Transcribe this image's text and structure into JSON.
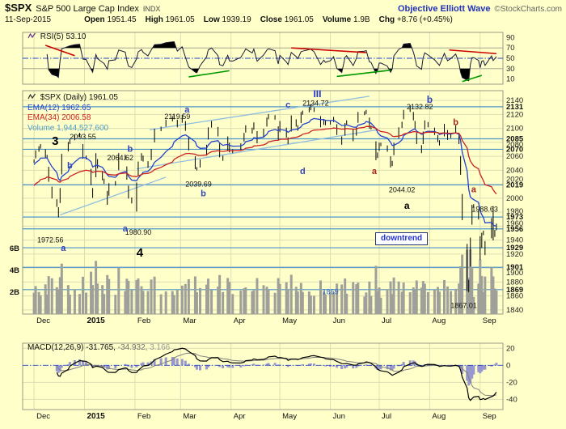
{
  "header": {
    "symbol": "$SPX",
    "name": "S&P 500 Large Cap Index",
    "exchange": "INDX",
    "brand": "Objective Elliott Wave",
    "copyright": "©StockCharts.com",
    "date": "11-Sep-2015",
    "quote": [
      {
        "label": "Open",
        "value": "1951.45"
      },
      {
        "label": "High",
        "value": "1961.05"
      },
      {
        "label": "Low",
        "value": "1939.19"
      },
      {
        "label": "Close",
        "value": "1961.05"
      },
      {
        "label": "Volume",
        "value": "1.9B"
      },
      {
        "label": "Chg",
        "value": "+8.76 (+0.45%)"
      }
    ]
  },
  "legends": {
    "rsi_label": "RSI(5)",
    "rsi_value": "53.10",
    "price_label": "$SPX (Daily)",
    "price_value": "1961.05",
    "ema12_label": "EMA(12)",
    "ema12_value": "1962.65",
    "ema34_label": "EMA(34)",
    "ema34_value": "2006.58",
    "volume_label": "Volume",
    "volume_value": "1,944,527,600",
    "macd_label": "MACD(12,26,9)",
    "macd_v1": "-31.765,",
    "macd_v2": "-34.932,",
    "macd_v3": "3.166",
    "downtrend": "downtrend"
  },
  "colors": {
    "background": "#FFFFC9",
    "grid": "#DDDDB6",
    "panel_border": "#999988",
    "support_line": "#4D94C9",
    "trendline": "#8FBEDF",
    "price_bar": "#000000",
    "ema12": "#2244CC",
    "ema34": "#CC2222",
    "volume_bar": "#A0A09A",
    "rsi_line": "#1A1A3A",
    "rsi_fill": "#000000",
    "macd_line": "#000000",
    "macd_signal": "#808080",
    "macd_hist": "#9898CE",
    "dashed_mid": "#2244CC",
    "brand": "#2233BB"
  },
  "chart_data": {
    "type": "ohlc",
    "title": "$SPX (Daily)",
    "last_close": 1961.05,
    "x_axis": {
      "start": "2014-11-24",
      "end": "2015-09-15",
      "months": [
        [
          "Dec",
          "2014-12-01"
        ],
        [
          "2015",
          "2015-01-01"
        ],
        [
          "Feb",
          "2015-02-01"
        ],
        [
          "Mar",
          "2015-03-01"
        ],
        [
          "Apr",
          "2015-04-01"
        ],
        [
          "May",
          "2015-05-01"
        ],
        [
          "Jun",
          "2015-06-01"
        ],
        [
          "Jul",
          "2015-07-01"
        ],
        [
          "Aug",
          "2015-08-01"
        ],
        [
          "Sep",
          "2015-09-01"
        ]
      ]
    },
    "price_axis": {
      "min": 1834,
      "max": 2154,
      "tick_min": 1840,
      "tick_max": 2140,
      "tick_step": 20
    },
    "support_resistance": [
      2131,
      2085,
      2070,
      2019,
      1973,
      1956,
      1929,
      1901,
      1869
    ],
    "points": [
      [
        "2014-12-01",
        2053
      ],
      [
        "2014-12-02",
        2066
      ],
      [
        "2014-12-04",
        2072
      ],
      [
        "2014-12-05",
        2075
      ],
      [
        "2014-12-08",
        2060
      ],
      [
        "2014-12-09",
        2059
      ],
      [
        "2014-12-10",
        2026
      ],
      [
        "2014-12-12",
        2002
      ],
      [
        "2014-12-15",
        1990
      ],
      [
        "2014-12-16",
        1979
      ],
      [
        "2014-12-17",
        2012
      ],
      [
        "2014-12-18",
        2061
      ],
      [
        "2014-12-22",
        2078
      ],
      [
        "2014-12-23",
        2082
      ],
      [
        "2014-12-26",
        2089
      ],
      [
        "2014-12-29",
        2091
      ],
      [
        "2014-12-31",
        2059
      ],
      [
        "2015-01-02",
        2058
      ],
      [
        "2015-01-05",
        2021
      ],
      [
        "2015-01-06",
        2003
      ],
      [
        "2015-01-08",
        2062
      ],
      [
        "2015-01-09",
        2045
      ],
      [
        "2015-01-12",
        2028
      ],
      [
        "2015-01-13",
        2023
      ],
      [
        "2015-01-15",
        1993
      ],
      [
        "2015-01-16",
        2019
      ],
      [
        "2015-01-20",
        2022
      ],
      [
        "2015-01-22",
        2063
      ],
      [
        "2015-01-26",
        2057
      ],
      [
        "2015-01-27",
        2029
      ],
      [
        "2015-01-28",
        2002
      ],
      [
        "2015-01-30",
        1995
      ],
      [
        "2015-02-02",
        2020
      ],
      [
        "2015-02-03",
        2050
      ],
      [
        "2015-02-05",
        2062
      ],
      [
        "2015-02-06",
        2055
      ],
      [
        "2015-02-09",
        2046
      ],
      [
        "2015-02-11",
        2068
      ],
      [
        "2015-02-13",
        2097
      ],
      [
        "2015-02-17",
        2100
      ],
      [
        "2015-02-20",
        2110
      ],
      [
        "2015-02-24",
        2115
      ],
      [
        "2015-02-25",
        2116
      ],
      [
        "2015-02-27",
        2104
      ],
      [
        "2015-03-02",
        2117
      ],
      [
        "2015-03-04",
        2099
      ],
      [
        "2015-03-06",
        2071
      ],
      [
        "2015-03-10",
        2044
      ],
      [
        "2015-03-11",
        2040
      ],
      [
        "2015-03-13",
        2053
      ],
      [
        "2015-03-17",
        2074
      ],
      [
        "2015-03-18",
        2099
      ],
      [
        "2015-03-20",
        2108
      ],
      [
        "2015-03-24",
        2091
      ],
      [
        "2015-03-25",
        2061
      ],
      [
        "2015-03-27",
        2056
      ],
      [
        "2015-03-30",
        2086
      ],
      [
        "2015-03-31",
        2068
      ],
      [
        "2015-04-02",
        2067
      ],
      [
        "2015-04-07",
        2076
      ],
      [
        "2015-04-09",
        2091
      ],
      [
        "2015-04-10",
        2102
      ],
      [
        "2015-04-14",
        2095
      ],
      [
        "2015-04-15",
        2106
      ],
      [
        "2015-04-17",
        2081
      ],
      [
        "2015-04-21",
        2097
      ],
      [
        "2015-04-23",
        2113
      ],
      [
        "2015-04-24",
        2118
      ],
      [
        "2015-04-28",
        2115
      ],
      [
        "2015-04-30",
        2086
      ],
      [
        "2015-05-01",
        2108
      ],
      [
        "2015-05-05",
        2089
      ],
      [
        "2015-05-06",
        2080
      ],
      [
        "2015-05-08",
        2116
      ],
      [
        "2015-05-11",
        2105
      ],
      [
        "2015-05-12",
        2099
      ],
      [
        "2015-05-14",
        2121
      ],
      [
        "2015-05-15",
        2123
      ],
      [
        "2015-05-19",
        2128
      ],
      [
        "2015-05-20",
        2129
      ],
      [
        "2015-05-22",
        2126
      ],
      [
        "2015-05-26",
        2104
      ],
      [
        "2015-05-28",
        2111
      ],
      [
        "2015-05-29",
        2107
      ],
      [
        "2015-06-01",
        2109
      ],
      [
        "2015-06-03",
        2114
      ],
      [
        "2015-06-05",
        2093
      ],
      [
        "2015-06-08",
        2079
      ],
      [
        "2015-06-10",
        2105
      ],
      [
        "2015-06-11",
        2109
      ],
      [
        "2015-06-15",
        2084
      ],
      [
        "2015-06-17",
        2100
      ],
      [
        "2015-06-18",
        2121
      ],
      [
        "2015-06-22",
        2122
      ],
      [
        "2015-06-23",
        2124
      ],
      [
        "2015-06-25",
        2102
      ],
      [
        "2015-06-26",
        2101
      ],
      [
        "2015-06-29",
        2057
      ],
      [
        "2015-06-30",
        2063
      ],
      [
        "2015-07-01",
        2077
      ],
      [
        "2015-07-02",
        2077
      ],
      [
        "2015-07-06",
        2069
      ],
      [
        "2015-07-08",
        2046
      ],
      [
        "2015-07-09",
        2051
      ],
      [
        "2015-07-10",
        2077
      ],
      [
        "2015-07-13",
        2099
      ],
      [
        "2015-07-15",
        2107
      ],
      [
        "2015-07-16",
        2124
      ],
      [
        "2015-07-20",
        2128
      ],
      [
        "2015-07-22",
        2114
      ],
      [
        "2015-07-23",
        2102
      ],
      [
        "2015-07-24",
        2080
      ],
      [
        "2015-07-27",
        2067
      ],
      [
        "2015-07-28",
        2093
      ],
      [
        "2015-07-29",
        2109
      ],
      [
        "2015-07-31",
        2104
      ],
      [
        "2015-08-04",
        2093
      ],
      [
        "2015-08-06",
        2083
      ],
      [
        "2015-08-07",
        2078
      ],
      [
        "2015-08-10",
        2104
      ],
      [
        "2015-08-12",
        2086
      ],
      [
        "2015-08-14",
        2091
      ],
      [
        "2015-08-17",
        2102
      ],
      [
        "2015-08-19",
        2080
      ],
      [
        "2015-08-20",
        2036
      ],
      [
        "2015-08-21",
        1971
      ],
      [
        "2015-08-24",
        1893
      ],
      [
        "2015-08-25",
        1868
      ],
      [
        "2015-08-26",
        1941
      ],
      [
        "2015-08-27",
        1988
      ],
      [
        "2015-08-28",
        1989
      ],
      [
        "2015-08-31",
        1972
      ],
      [
        "2015-09-01",
        1914
      ],
      [
        "2015-09-02",
        1948
      ],
      [
        "2015-09-03",
        1951
      ],
      [
        "2015-09-04",
        1921
      ],
      [
        "2015-09-08",
        1969
      ],
      [
        "2015-09-09",
        1942
      ],
      [
        "2015-09-10",
        1952
      ],
      [
        "2015-09-11",
        1961.05
      ]
    ],
    "extremes": [
      [
        "2014-12-16",
        "low",
        1972.56
      ],
      [
        "2014-12-29",
        "high",
        2093.55
      ],
      [
        "2015-01-22",
        "high",
        2064.62
      ],
      [
        "2015-02-02",
        "low",
        1980.9
      ],
      [
        "2015-02-25",
        "high",
        2119.59
      ],
      [
        "2015-03-11",
        "low",
        2039.69
      ],
      [
        "2015-05-20",
        "high",
        2134.72
      ],
      [
        "2015-07-08",
        "low",
        2044.02
      ],
      [
        "2015-07-20",
        "high",
        2132.82
      ],
      [
        "2015-08-24",
        "low",
        1867.01
      ],
      [
        "2015-09-09",
        "high",
        1988.63
      ]
    ],
    "emas": [
      {
        "period": 12,
        "value": 1962.65,
        "color": "#2244CC"
      },
      {
        "period": 34,
        "value": 2006.58,
        "color": "#CC2222"
      }
    ],
    "volume": {
      "current": "1,944,527,600",
      "unit": "B",
      "axis_labels": [
        [
          6,
          "6B"
        ],
        [
          4,
          "4B"
        ],
        [
          2,
          "2B"
        ]
      ]
    },
    "trendlines": [
      {
        "from": [
          "2015-02-10",
          2098
        ],
        "to": [
          "2015-06-25",
          2146
        ]
      },
      {
        "from": [
          "2015-02-02",
          2042
        ],
        "to": [
          "2015-06-30",
          2098
        ]
      },
      {
        "from": [
          "2014-12-17",
          1976
        ],
        "to": [
          "2015-02-20",
          2030
        ]
      }
    ],
    "annotations": [
      {
        "text": "3",
        "date": "2014-12-14",
        "price": 2080,
        "color": "#000000",
        "size": 15,
        "bold": true
      },
      {
        "text": "b",
        "date": "2014-12-23",
        "price": 2046,
        "color": "#3344BB",
        "size": 11,
        "bold": true
      },
      {
        "text": "a",
        "date": "2014-12-19",
        "price": 1928,
        "color": "#3344BB",
        "size": 11,
        "bold": true
      },
      {
        "text": "1972.56",
        "date": "2014-12-11",
        "price": 1940,
        "color": "#111111",
        "size": 9,
        "bold": false
      },
      {
        "text": "2093.55",
        "date": "2014-12-31",
        "price": 2088,
        "color": "#111111",
        "size": 9,
        "bold": false
      },
      {
        "text": "4",
        "date": "2015-02-04",
        "price": 1920,
        "color": "#000000",
        "size": 15,
        "bold": true
      },
      {
        "text": "1980.90",
        "date": "2015-02-03",
        "price": 1951,
        "color": "#111111",
        "size": 9,
        "bold": false
      },
      {
        "text": "a",
        "date": "2015-01-26",
        "price": 1956,
        "color": "#3344BB",
        "size": 11,
        "bold": true
      },
      {
        "text": "b",
        "date": "2015-01-29",
        "price": 2070,
        "color": "#3344BB",
        "size": 11,
        "bold": true
      },
      {
        "text": "2064.62",
        "date": "2015-01-23",
        "price": 2058,
        "color": "#111111",
        "size": 9,
        "bold": false
      },
      {
        "text": "a",
        "date": "2015-03-05",
        "price": 2126,
        "color": "#3344BB",
        "size": 11,
        "bold": true
      },
      {
        "text": "2119.59",
        "date": "2015-02-27",
        "price": 2117,
        "color": "#111111",
        "size": 9,
        "bold": false
      },
      {
        "text": "b",
        "date": "2015-03-15",
        "price": 2006,
        "color": "#3344BB",
        "size": 11,
        "bold": true
      },
      {
        "text": "2039.69",
        "date": "2015-03-12",
        "price": 2020,
        "color": "#111111",
        "size": 9,
        "bold": false
      },
      {
        "text": "d",
        "date": "2015-05-15",
        "price": 2038,
        "color": "#3344BB",
        "size": 11,
        "bold": true
      },
      {
        "text": "c",
        "date": "2015-05-06",
        "price": 2133,
        "color": "#3344BB",
        "size": 11,
        "bold": true
      },
      {
        "text": "2134.72",
        "date": "2015-05-23",
        "price": 2136,
        "color": "#111111",
        "size": 9,
        "bold": false
      },
      {
        "text": "III",
        "date": "2015-05-24",
        "price": 2148,
        "color": "#2233CC",
        "size": 12,
        "bold": true
      },
      {
        "text": "b",
        "date": "2015-08-01",
        "price": 2140,
        "color": "#3344BB",
        "size": 12,
        "bold": true
      },
      {
        "text": "2132.82",
        "date": "2015-07-26",
        "price": 2131,
        "color": "#111111",
        "size": 9,
        "bold": false
      },
      {
        "text": "b",
        "date": "2015-08-17",
        "price": 2108,
        "color": "#AA2222",
        "size": 11,
        "bold": true
      },
      {
        "text": "a",
        "date": "2015-06-28",
        "price": 2038,
        "color": "#AA2222",
        "size": 11,
        "bold": true
      },
      {
        "text": "2044.02",
        "date": "2015-07-15",
        "price": 2012,
        "color": "#111111",
        "size": 9,
        "bold": false
      },
      {
        "text": "a",
        "date": "2015-07-18",
        "price": 1988,
        "color": "#000000",
        "size": 12,
        "bold": true
      },
      {
        "text": "a",
        "date": "2015-08-28",
        "price": 2012,
        "color": "#AA2222",
        "size": 11,
        "bold": true
      },
      {
        "text": "1988.63",
        "date": "2015-09-12",
        "price": 1984,
        "color": "#111111",
        "size": 9,
        "bold": false,
        "anchor": "end"
      },
      {
        "text": "1867.01",
        "date": "2015-08-22",
        "price": 1846,
        "color": "#111111",
        "size": 9,
        "bold": false
      },
      {
        "text": "1869",
        "date": "2015-06-01",
        "price": 1866,
        "color": "#3366CC",
        "size": 9,
        "bold": false
      }
    ],
    "rsi": {
      "period": 5,
      "value": 53.1,
      "ticks": [
        90,
        70,
        50,
        30,
        10
      ],
      "overbought": 70,
      "oversold": 30,
      "mid": 50,
      "segments": [
        {
          "color": "#CC0000",
          "from": [
            "2014-12-08",
            75
          ],
          "to": [
            "2014-12-26",
            55
          ]
        },
        {
          "color": "#CC0000",
          "from": [
            "2015-05-08",
            70
          ],
          "to": [
            "2015-06-23",
            61
          ]
        },
        {
          "color": "#CC0000",
          "from": [
            "2015-08-13",
            66
          ],
          "to": [
            "2015-09-11",
            59
          ]
        },
        {
          "color": "#009900",
          "from": [
            "2015-03-06",
            14
          ],
          "to": [
            "2015-03-31",
            26
          ]
        },
        {
          "color": "#009900",
          "from": [
            "2015-06-05",
            15
          ],
          "to": [
            "2015-07-08",
            27
          ]
        },
        {
          "color": "#009900",
          "from": [
            "2015-08-21",
            5
          ],
          "to": [
            "2015-09-02",
            17
          ]
        }
      ]
    },
    "macd": {
      "fast": 12,
      "slow": 26,
      "signal": 9,
      "current": [
        -31.765,
        -34.932,
        3.166
      ],
      "ticks": [
        20,
        0,
        -20,
        -40
      ],
      "range": [
        -52,
        26
      ]
    }
  }
}
